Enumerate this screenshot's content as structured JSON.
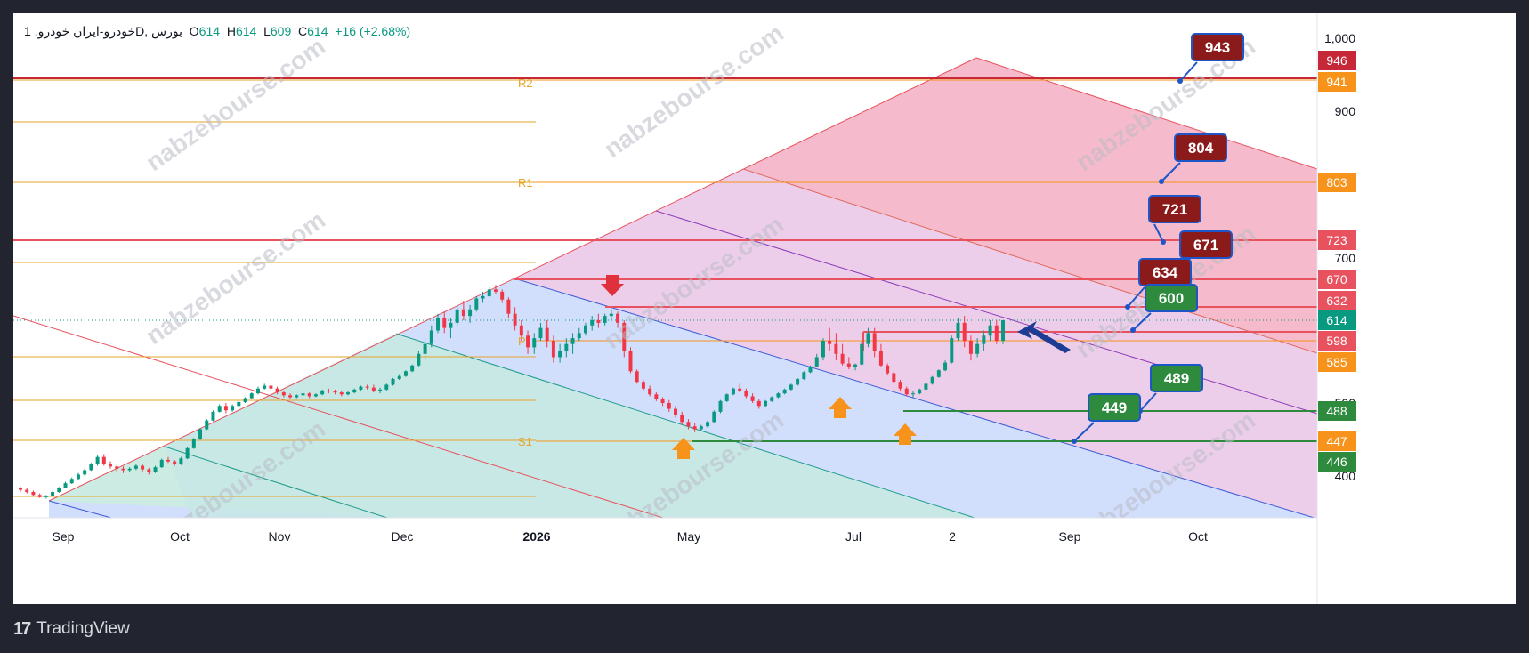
{
  "header": {
    "symbol": "1 ,خودرو-ایران خودروD",
    "exchange": "بورس",
    "open_label": "O",
    "open": "614",
    "high_label": "H",
    "high": "614",
    "low_label": "L",
    "low": "609",
    "close_label": "C",
    "close": "614",
    "change": "+16 (+2.68%)"
  },
  "footer": {
    "brand": "TradingView",
    "logo": "tradingview-logo-icon"
  },
  "watermark": "nabzebourse.com",
  "colors": {
    "up": "#089981",
    "down": "#f23645",
    "orange": "#f7931a",
    "green": "#2e8b3e",
    "darkred": "#8b1a1a",
    "labelred": "#e8525e",
    "blue": "#1e56c8",
    "navy": "#1f3c94"
  },
  "chart_data": {
    "type": "candlestick",
    "x_tick_labels": [
      "Sep",
      "Oct",
      "Nov",
      "Dec",
      "2026",
      "May",
      "Jul",
      "2",
      "Sep",
      "Oct"
    ],
    "y_tick_labels": [
      "1,000",
      "900",
      "700",
      "500",
      "400"
    ],
    "last_price": 614,
    "pivot_labels": [
      "R2",
      "R1",
      "P",
      "S1"
    ],
    "price_tags": [
      {
        "value": "946",
        "color": "#c62838"
      },
      {
        "value": "941",
        "color": "#f7931a"
      },
      {
        "value": "803",
        "color": "#f7931a"
      },
      {
        "value": "723",
        "color": "#e8525e"
      },
      {
        "value": "670",
        "color": "#e8525e"
      },
      {
        "value": "632",
        "color": "#e8525e"
      },
      {
        "value": "614",
        "color": "#089981"
      },
      {
        "value": "598",
        "color": "#e8525e"
      },
      {
        "value": "585",
        "color": "#f7931a"
      },
      {
        "value": "488",
        "color": "#2e8b3e"
      },
      {
        "value": "447",
        "color": "#f7931a"
      },
      {
        "value": "446",
        "color": "#2e8b3e"
      }
    ],
    "callouts": [
      {
        "text": "943",
        "color": "#8b1a1a"
      },
      {
        "text": "804",
        "color": "#8b1a1a"
      },
      {
        "text": "721",
        "color": "#8b1a1a"
      },
      {
        "text": "671",
        "color": "#8b1a1a"
      },
      {
        "text": "634",
        "color": "#8b1a1a"
      },
      {
        "text": "600",
        "color": "#2e8b3e"
      },
      {
        "text": "489",
        "color": "#2e8b3e"
      },
      {
        "text": "449",
        "color": "#2e8b3e"
      }
    ],
    "candles": [
      [
        383,
        385,
        378,
        381
      ],
      [
        381,
        383,
        376,
        378
      ],
      [
        378,
        380,
        372,
        374
      ],
      [
        374,
        376,
        370,
        371
      ],
      [
        371,
        374,
        369,
        373
      ],
      [
        373,
        379,
        372,
        378
      ],
      [
        378,
        385,
        377,
        384
      ],
      [
        384,
        392,
        383,
        390
      ],
      [
        390,
        398,
        389,
        396
      ],
      [
        396,
        404,
        395,
        402
      ],
      [
        402,
        410,
        400,
        408
      ],
      [
        408,
        418,
        407,
        416
      ],
      [
        416,
        428,
        414,
        426
      ],
      [
        426,
        430,
        414,
        416
      ],
      [
        416,
        420,
        410,
        413
      ],
      [
        413,
        415,
        406,
        410
      ],
      [
        410,
        413,
        404,
        408
      ],
      [
        408,
        412,
        405,
        410
      ],
      [
        410,
        416,
        408,
        414
      ],
      [
        414,
        416,
        406,
        409
      ],
      [
        409,
        411,
        402,
        405
      ],
      [
        405,
        414,
        404,
        412
      ],
      [
        412,
        424,
        411,
        422
      ],
      [
        422,
        426,
        418,
        420
      ],
      [
        420,
        422,
        414,
        416
      ],
      [
        416,
        426,
        415,
        424
      ],
      [
        424,
        440,
        423,
        438
      ],
      [
        438,
        452,
        437,
        450
      ],
      [
        450,
        466,
        449,
        464
      ],
      [
        464,
        478,
        463,
        476
      ],
      [
        476,
        490,
        475,
        488
      ],
      [
        488,
        498,
        487,
        496
      ],
      [
        496,
        500,
        486,
        490
      ],
      [
        490,
        498,
        488,
        496
      ],
      [
        496,
        504,
        494,
        502
      ],
      [
        502,
        512,
        500,
        510
      ],
      [
        510,
        522,
        508,
        520
      ],
      [
        520,
        534,
        518,
        530
      ],
      [
        530,
        540,
        528,
        536
      ],
      [
        536,
        542,
        526,
        530
      ],
      [
        530,
        534,
        518,
        522
      ],
      [
        522,
        526,
        512,
        516
      ],
      [
        516,
        520,
        508,
        512
      ],
      [
        512,
        518,
        510,
        516
      ],
      [
        516,
        524,
        514,
        520
      ],
      [
        520,
        522,
        510,
        514
      ],
      [
        514,
        520,
        512,
        518
      ],
      [
        518,
        528,
        516,
        526
      ],
      [
        526,
        530,
        520,
        524
      ],
      [
        524,
        528,
        518,
        522
      ],
      [
        522,
        526,
        514,
        518
      ],
      [
        518,
        524,
        516,
        522
      ],
      [
        522,
        530,
        520,
        528
      ],
      [
        528,
        536,
        526,
        534
      ],
      [
        534,
        538,
        528,
        532
      ],
      [
        532,
        538,
        522,
        526
      ],
      [
        526,
        532,
        520,
        528
      ],
      [
        528,
        540,
        526,
        538
      ],
      [
        538,
        552,
        536,
        550
      ],
      [
        550,
        560,
        548,
        556
      ],
      [
        556,
        568,
        554,
        566
      ],
      [
        566,
        580,
        564,
        578
      ],
      [
        578,
        592,
        576,
        590
      ],
      [
        590,
        600,
        586,
        596
      ],
      [
        596,
        610,
        594,
        606
      ],
      [
        606,
        620,
        604,
        616
      ],
      [
        616,
        622,
        604,
        608
      ],
      [
        608,
        616,
        600,
        612
      ],
      [
        612,
        628,
        610,
        624
      ],
      [
        624,
        632,
        614,
        618
      ],
      [
        618,
        628,
        612,
        624
      ],
      [
        624,
        640,
        622,
        636
      ],
      [
        636,
        648,
        630,
        640
      ],
      [
        640,
        656,
        638,
        652
      ],
      [
        652,
        660,
        644,
        648
      ],
      [
        648,
        652,
        630,
        634
      ],
      [
        634,
        638,
        616,
        620
      ],
      [
        620,
        626,
        606,
        610
      ],
      [
        610,
        614,
        598,
        602
      ],
      [
        602,
        606,
        590,
        594
      ],
      [
        594,
        604,
        590,
        600
      ],
      [
        600,
        612,
        598,
        608
      ],
      [
        608,
        614,
        594,
        598
      ],
      [
        598,
        602,
        584,
        588
      ],
      [
        588,
        596,
        584,
        592
      ],
      [
        592,
        600,
        588,
        596
      ],
      [
        596,
        604,
        590,
        600
      ],
      [
        600,
        608,
        598,
        604
      ],
      [
        604,
        612,
        602,
        610
      ],
      [
        610,
        618,
        606,
        614
      ],
      [
        614,
        620,
        608,
        612
      ],
      [
        612,
        620,
        610,
        618
      ],
      [
        618,
        624,
        614,
        620
      ],
      [
        620,
        622,
        608,
        612
      ],
      [
        612,
        614,
        588,
        592
      ],
      [
        592,
        594,
        562,
        566
      ],
      [
        566,
        570,
        540,
        544
      ],
      [
        544,
        548,
        526,
        530
      ],
      [
        530,
        536,
        514,
        518
      ],
      [
        518,
        522,
        504,
        508
      ],
      [
        508,
        512,
        496,
        500
      ],
      [
        500,
        506,
        488,
        492
      ],
      [
        492,
        496,
        480,
        484
      ],
      [
        484,
        488,
        470,
        474
      ],
      [
        474,
        478,
        464,
        468
      ],
      [
        468,
        472,
        460,
        464
      ],
      [
        464,
        470,
        462,
        468
      ],
      [
        468,
        476,
        466,
        474
      ],
      [
        474,
        490,
        472,
        488
      ],
      [
        488,
        506,
        486,
        504
      ],
      [
        504,
        520,
        502,
        518
      ],
      [
        518,
        532,
        516,
        530
      ],
      [
        530,
        540,
        522,
        526
      ],
      [
        526,
        530,
        510,
        514
      ],
      [
        514,
        520,
        500,
        504
      ],
      [
        504,
        508,
        492,
        496
      ],
      [
        496,
        506,
        494,
        504
      ],
      [
        504,
        514,
        502,
        512
      ],
      [
        512,
        522,
        510,
        520
      ],
      [
        520,
        530,
        518,
        528
      ],
      [
        528,
        540,
        526,
        538
      ],
      [
        538,
        552,
        536,
        550
      ],
      [
        550,
        566,
        548,
        564
      ],
      [
        564,
        578,
        562,
        576
      ],
      [
        576,
        590,
        574,
        588
      ],
      [
        588,
        600,
        586,
        598
      ],
      [
        598,
        608,
        592,
        596
      ],
      [
        596,
        604,
        586,
        590
      ],
      [
        590,
        596,
        578,
        582
      ],
      [
        582,
        588,
        570,
        574
      ],
      [
        574,
        582,
        568,
        580
      ],
      [
        580,
        598,
        578,
        596
      ],
      [
        596,
        608,
        594,
        604
      ],
      [
        604,
        608,
        588,
        592
      ],
      [
        592,
        596,
        574,
        578
      ],
      [
        578,
        582,
        558,
        562
      ],
      [
        562,
        566,
        540,
        544
      ],
      [
        544,
        548,
        526,
        530
      ],
      [
        530,
        534,
        514,
        518
      ],
      [
        518,
        524,
        512,
        520
      ],
      [
        520,
        530,
        518,
        528
      ],
      [
        528,
        542,
        526,
        540
      ],
      [
        540,
        556,
        538,
        554
      ],
      [
        554,
        570,
        552,
        568
      ],
      [
        568,
        586,
        566,
        584
      ],
      [
        584,
        602,
        582,
        600
      ],
      [
        600,
        616,
        598,
        612
      ],
      [
        612,
        618,
        594,
        598
      ],
      [
        598,
        602,
        586,
        590
      ],
      [
        590,
        600,
        588,
        596
      ],
      [
        596,
        606,
        592,
        602
      ],
      [
        602,
        614,
        598,
        610
      ],
      [
        610,
        614,
        596,
        598
      ],
      [
        598,
        614,
        596,
        614
      ]
    ]
  }
}
